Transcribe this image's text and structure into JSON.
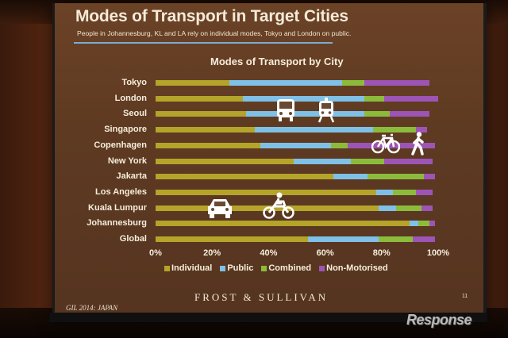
{
  "slide": {
    "title": "Modes of Transport in Target Cities",
    "subtitle": "People in Johannesburg, KL and LA rely on individual modes, Tokyo and London on public.",
    "event": "GIL 2014: JAPAN",
    "brand": "FROST & SULLIVAN",
    "page_number": "11"
  },
  "watermark": "Response",
  "chart_data": {
    "type": "bar",
    "orientation": "horizontal",
    "stacked": true,
    "title": "Modes of Transport by City",
    "categories": [
      "Tokyo",
      "London",
      "Seoul",
      "Singapore",
      "Copenhagen",
      "New York",
      "Jakarta",
      "Los Angeles",
      "Kuala Lumpur",
      "Johannesburg",
      "Global"
    ],
    "series": [
      {
        "name": "Individual",
        "color": "#b5a42a",
        "values": [
          26,
          31,
          32,
          35,
          37,
          49,
          63,
          78,
          79,
          90,
          54
        ]
      },
      {
        "name": "Public",
        "color": "#7fc0e6",
        "values": [
          40,
          43,
          42,
          42,
          25,
          20,
          12,
          6,
          6,
          3,
          25
        ]
      },
      {
        "name": "Combined",
        "color": "#8cbb3c",
        "values": [
          8,
          7,
          9,
          15,
          6,
          12,
          20,
          8,
          9,
          4,
          12
        ]
      },
      {
        "name": "Non-Motorised",
        "color": "#9d55b5",
        "values": [
          23,
          19,
          14,
          4,
          31,
          17,
          4,
          6,
          4,
          2,
          8
        ]
      }
    ],
    "xlim": [
      0,
      100
    ],
    "xticks": [
      "0%",
      "20%",
      "40%",
      "60%",
      "80%",
      "100%"
    ],
    "xlabel": "",
    "ylabel": "",
    "legend_position": "bottom"
  },
  "icons": [
    "car-icon",
    "motorcycle-icon",
    "bus-icon",
    "tram-icon",
    "bicycle-icon",
    "pedestrian-icon"
  ],
  "colors": {
    "icon": "#ffffff",
    "rule": "#7aaad8",
    "text": "#f6eedc"
  }
}
